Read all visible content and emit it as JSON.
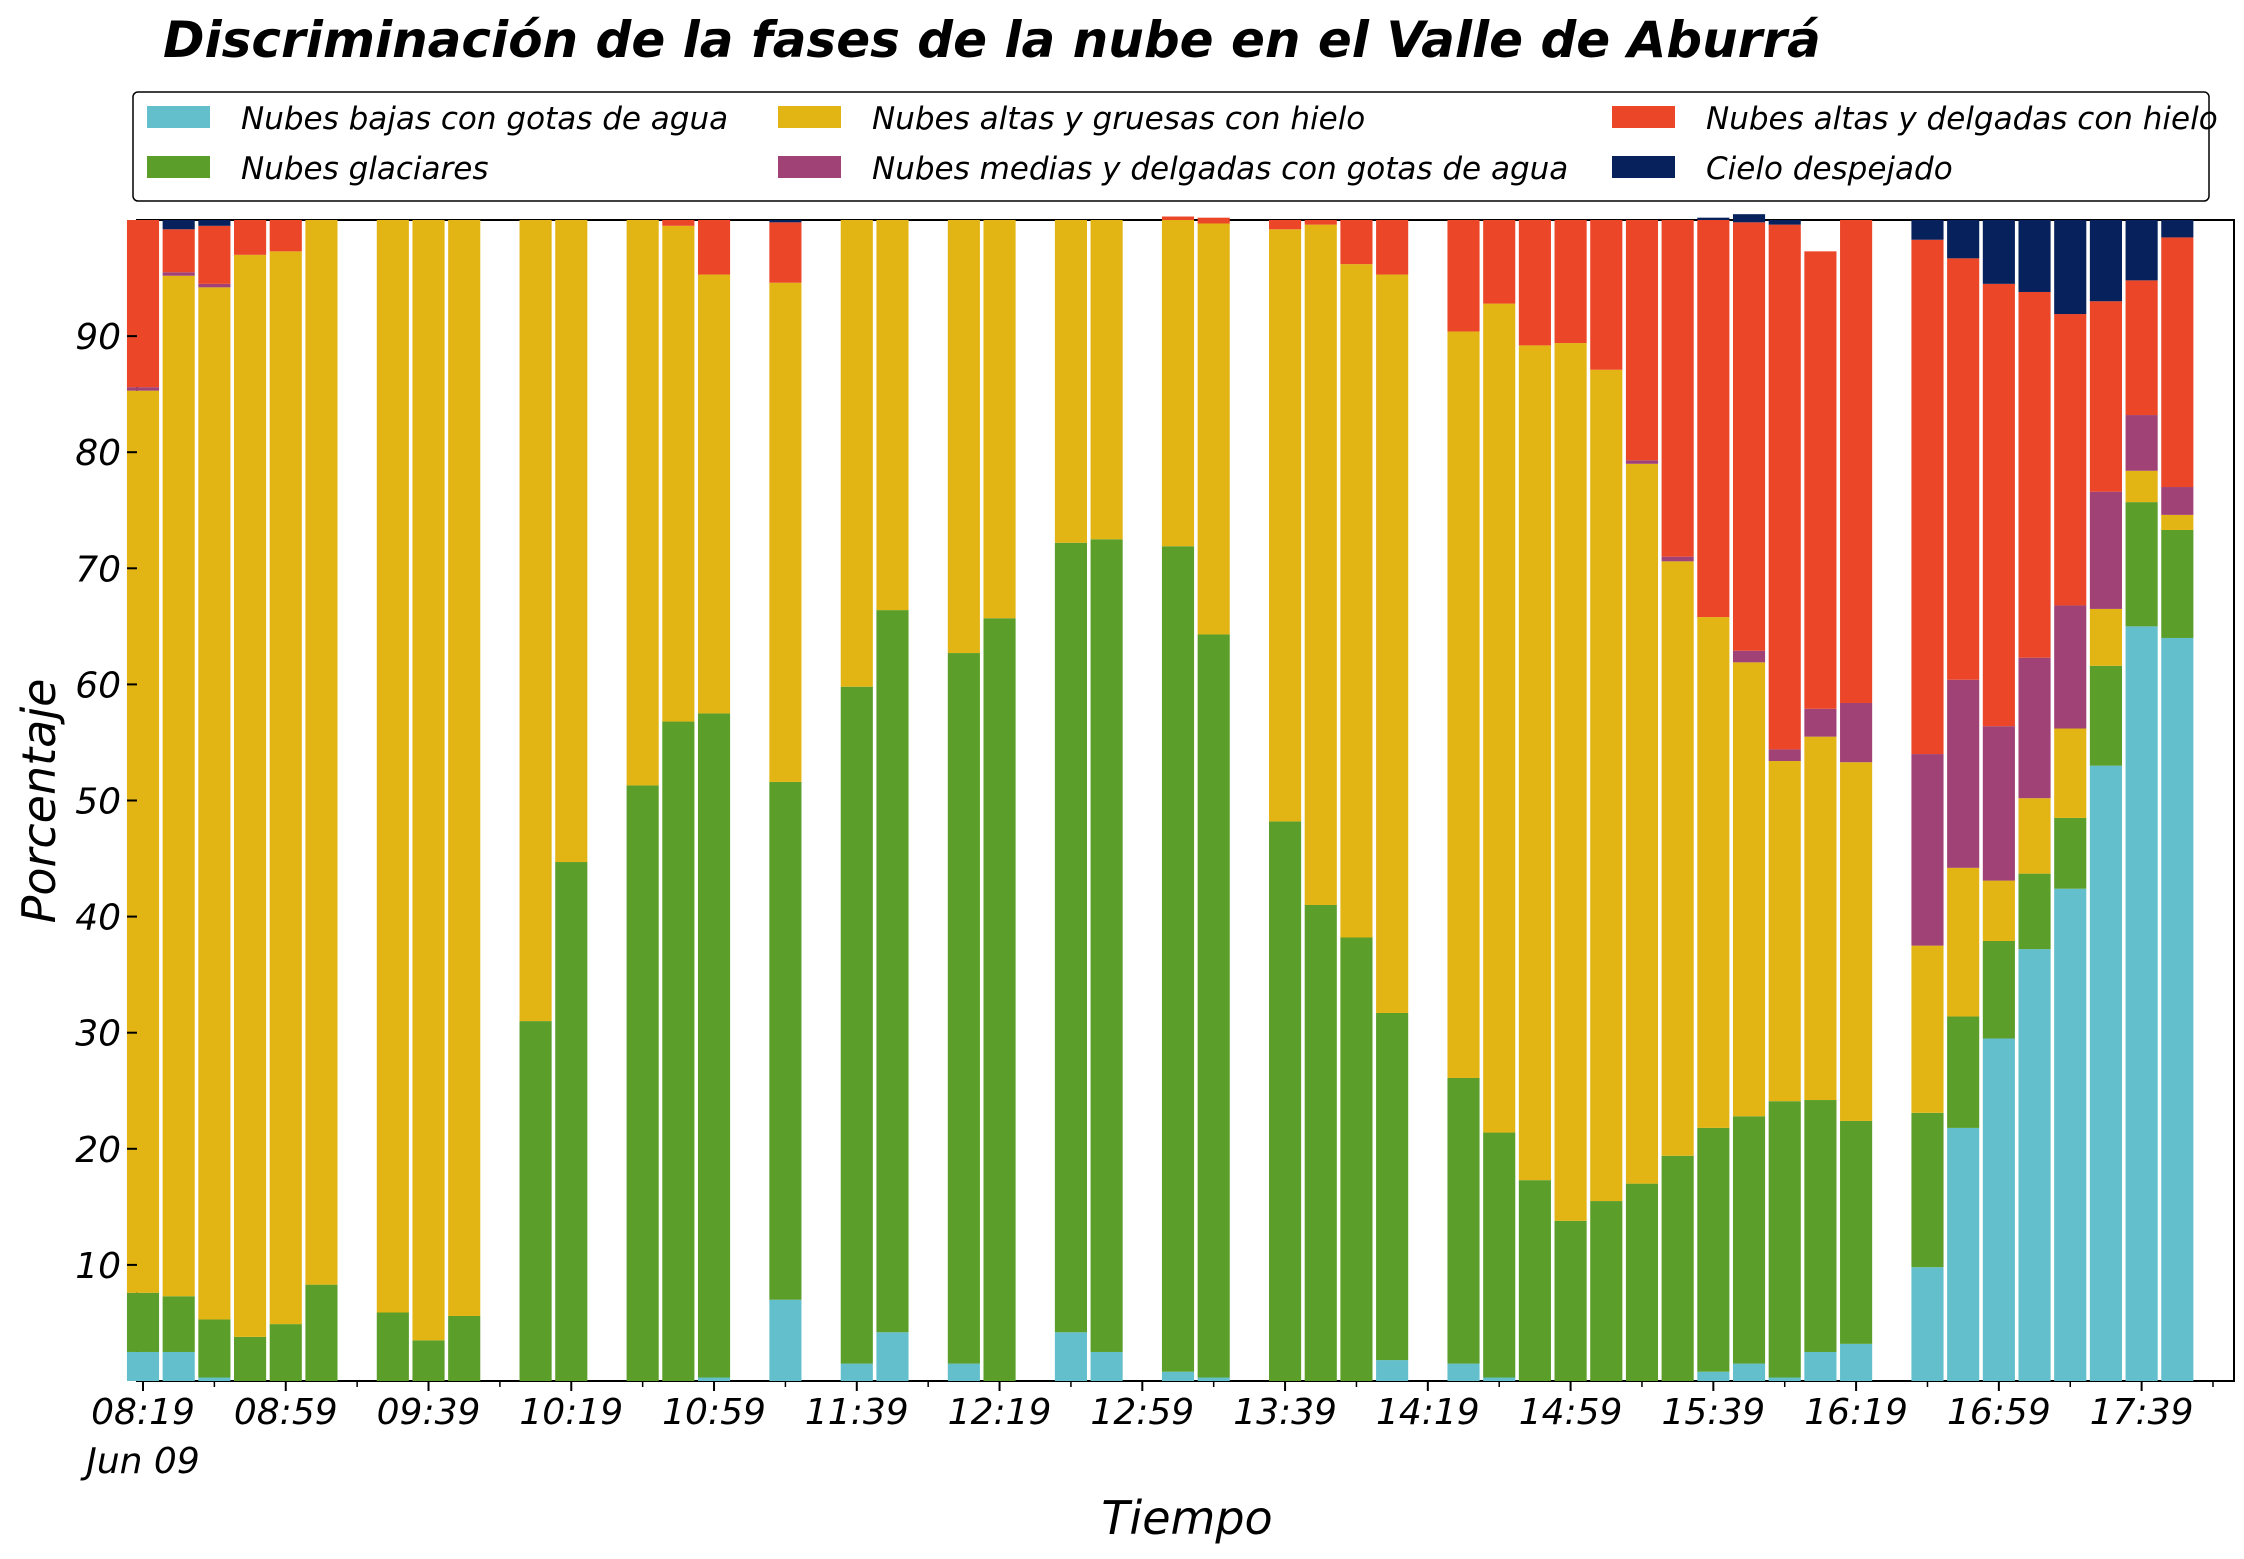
{
  "chart_data": {
    "type": "bar",
    "stacked": true,
    "title": "Discriminación de la fases de la nube en el Valle de Aburrá",
    "xlabel": "Tiempo",
    "ylabel": "Porcentaje",
    "ylim": [
      0,
      100
    ],
    "yticks": [
      10,
      20,
      30,
      40,
      50,
      60,
      70,
      80,
      90
    ],
    "grid": false,
    "legend_position": "top",
    "x_start": "08:19",
    "x_end": "17:59",
    "x_step_minutes": 10,
    "xticks": [
      "08:19",
      "08:59",
      "09:39",
      "10:19",
      "10:59",
      "11:39",
      "12:19",
      "12:59",
      "13:39",
      "14:19",
      "14:59",
      "15:39",
      "16:19",
      "16:59",
      "17:39"
    ],
    "xtick_sublabel": "Jun 09",
    "x": [
      "08:19",
      "08:29",
      "08:39",
      "08:49",
      "08:59",
      "09:09",
      "09:19",
      "09:29",
      "09:39",
      "09:49",
      "09:59",
      "10:09",
      "10:19",
      "10:29",
      "10:39",
      "10:49",
      "10:59",
      "11:09",
      "11:19",
      "11:29",
      "11:39",
      "11:49",
      "11:59",
      "12:09",
      "12:19",
      "12:29",
      "12:39",
      "12:49",
      "12:59",
      "13:09",
      "13:19",
      "13:29",
      "13:39",
      "13:49",
      "13:59",
      "14:09",
      "14:19",
      "14:29",
      "14:39",
      "14:49",
      "14:59",
      "15:09",
      "15:19",
      "15:29",
      "15:39",
      "15:49",
      "15:59",
      "16:09",
      "16:19",
      "16:29",
      "16:39",
      "16:49",
      "16:59",
      "17:09",
      "17:19",
      "17:29",
      "17:39",
      "17:49"
    ],
    "series": [
      {
        "name": "Nubes bajas con gotas de agua",
        "color": "#63bfcb",
        "values": [
          2.5,
          2.5,
          0.3,
          0,
          0,
          0,
          null,
          0,
          0,
          0,
          null,
          0,
          0,
          null,
          0,
          0,
          0.3,
          null,
          7,
          null,
          1.5,
          4.2,
          null,
          1.5,
          0,
          null,
          4.2,
          2.5,
          null,
          0.8,
          0.3,
          null,
          0,
          0,
          0,
          1.8,
          null,
          1.5,
          0.3,
          0,
          0,
          0,
          0,
          0,
          0.8,
          1.5,
          0.3,
          2.5,
          3.2,
          null,
          9.8,
          21.8,
          29.5,
          37.2,
          42.4,
          53,
          65,
          64
        ]
      },
      {
        "name": "Nubes glaciares",
        "color": "#5b9e2a",
        "values": [
          5.1,
          4.8,
          5,
          3.8,
          4.9,
          8.3,
          null,
          5.9,
          3.5,
          5.6,
          null,
          31,
          44.7,
          null,
          51.3,
          56.8,
          57.2,
          null,
          44.6,
          null,
          58.3,
          62.2,
          null,
          61.2,
          65.7,
          null,
          68,
          70,
          null,
          71.1,
          64,
          null,
          48.2,
          41,
          38.2,
          29.9,
          null,
          24.6,
          21.1,
          17.3,
          13.8,
          15.5,
          17,
          19.4,
          21,
          21.3,
          23.8,
          21.7,
          19.2,
          null,
          13.3,
          9.6,
          8.4,
          6.5,
          6.1,
          8.6,
          10.7,
          9.3
        ]
      },
      {
        "name": "Nubes altas y gruesas con hielo",
        "color": "#e3b514",
        "values": [
          77.7,
          87.9,
          88.9,
          93.2,
          92.4,
          91.7,
          null,
          94.1,
          96.5,
          94.4,
          null,
          69,
          55.3,
          null,
          48.7,
          42.7,
          37.8,
          null,
          43,
          null,
          40.2,
          33.6,
          null,
          37.3,
          34.3,
          null,
          27.8,
          27.5,
          null,
          28.1,
          35.4,
          null,
          51,
          58.6,
          58,
          63.6,
          null,
          64.3,
          71.4,
          71.9,
          75.6,
          71.6,
          62,
          51.2,
          44,
          39.1,
          29.3,
          31.3,
          30.9,
          null,
          14.4,
          12.8,
          5.2,
          6.5,
          7.7,
          4.9,
          2.7,
          1.3
        ]
      },
      {
        "name": "Nubes medias y delgadas con gotas de agua",
        "color": "#a04276",
        "values": [
          0.3,
          0.3,
          0.3,
          0,
          0,
          0,
          null,
          0,
          0,
          0,
          null,
          0,
          0,
          null,
          0,
          0,
          0,
          null,
          0,
          null,
          0,
          0,
          null,
          0,
          0,
          null,
          0,
          0,
          null,
          0,
          0,
          null,
          0,
          0,
          0,
          0,
          null,
          0,
          0,
          0,
          0,
          0,
          0.3,
          0.4,
          0,
          1,
          1,
          2.4,
          5.1,
          null,
          16.5,
          16.2,
          13.3,
          12.1,
          10.6,
          10.1,
          4.8,
          2.4
        ]
      },
      {
        "name": "Nubes altas y delgadas con hielo",
        "color": "#ec4628",
        "values": [
          14.4,
          3.7,
          5,
          3,
          2.7,
          0,
          null,
          0,
          0,
          0,
          null,
          0,
          0,
          null,
          0,
          0.5,
          4.7,
          null,
          5.2,
          null,
          0,
          0,
          null,
          0,
          0,
          null,
          0,
          0,
          null,
          0.3,
          0.5,
          null,
          0.8,
          0.4,
          3.8,
          4.7,
          null,
          9.6,
          7.2,
          10.8,
          10.6,
          12.9,
          20.7,
          29,
          34.2,
          36.9,
          45.2,
          39.4,
          41.6,
          null,
          44.3,
          36.3,
          38.1,
          31.5,
          25.1,
          16.4,
          11.6,
          21.5
        ]
      },
      {
        "name": "Cielo despejado",
        "color": "#06215c",
        "values": [
          0,
          0.8,
          0.5,
          0,
          0,
          0,
          null,
          0,
          0,
          0,
          null,
          0,
          0,
          null,
          0,
          0,
          0,
          null,
          0.2,
          null,
          0,
          0,
          null,
          0,
          0,
          null,
          0,
          0,
          null,
          0,
          0,
          null,
          0,
          0,
          0,
          0,
          null,
          0,
          0,
          0,
          0,
          0,
          0,
          0,
          0.2,
          0.7,
          0.4,
          0,
          0,
          null,
          1.7,
          3.3,
          5.5,
          6.2,
          8.1,
          7,
          5.2,
          1.5
        ]
      }
    ]
  }
}
